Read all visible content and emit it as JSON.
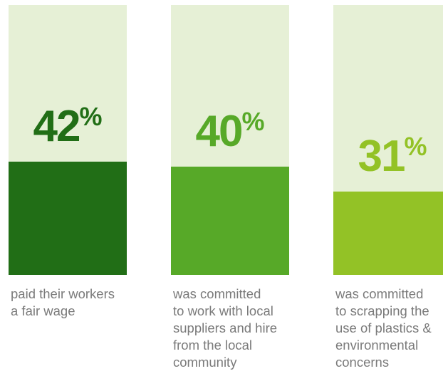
{
  "chart_data": {
    "type": "bar",
    "categories": [
      "paid their workers\na fair wage",
      "was committed\nto work with local\nsuppliers and hire\nfrom the local\ncommunity",
      "was committed\nto scrapping the\nuse of plastics &\nenvironmental\nconcerns"
    ],
    "values": [
      42,
      40,
      31
    ],
    "value_labels": [
      "42",
      "40",
      "31"
    ],
    "unit": "%",
    "ylim": [
      0,
      100
    ],
    "grid": false,
    "legend": "none",
    "colors": {
      "background_column": "#e6f0d6",
      "bars": [
        "#216e16",
        "#57a928",
        "#93c226"
      ],
      "labels": [
        "#216e16",
        "#57a928",
        "#93c226"
      ],
      "caption": "#7a7a7a"
    }
  }
}
